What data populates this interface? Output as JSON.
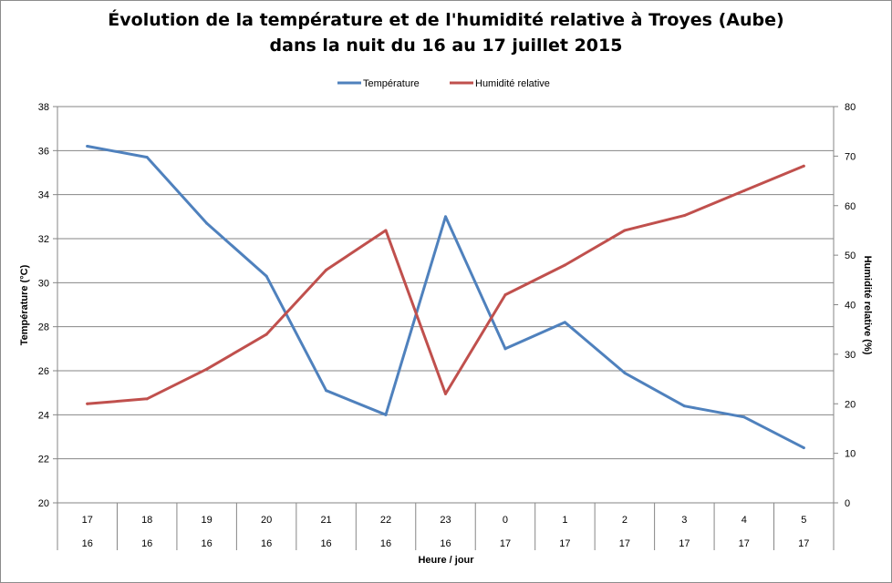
{
  "chart_data": {
    "type": "line",
    "title_line1": "Évolution de la température et de l'humidité relative à Troyes (Aube)",
    "title_line2": "dans la nuit du 16 au 17 juillet 2015",
    "xlabel": "Heure / jour",
    "ylabel_left": "Température (°C)",
    "ylabel_right": "Humidité relative (%)",
    "categories": [
      {
        "hour": "17",
        "day": "16"
      },
      {
        "hour": "18",
        "day": "16"
      },
      {
        "hour": "19",
        "day": "16"
      },
      {
        "hour": "20",
        "day": "16"
      },
      {
        "hour": "21",
        "day": "16"
      },
      {
        "hour": "22",
        "day": "16"
      },
      {
        "hour": "23",
        "day": "16"
      },
      {
        "hour": "0",
        "day": "17"
      },
      {
        "hour": "1",
        "day": "17"
      },
      {
        "hour": "2",
        "day": "17"
      },
      {
        "hour": "3",
        "day": "17"
      },
      {
        "hour": "4",
        "day": "17"
      },
      {
        "hour": "5",
        "day": "17"
      }
    ],
    "ylim_left": [
      20,
      38
    ],
    "yticks_left": [
      20,
      22,
      24,
      26,
      28,
      30,
      32,
      34,
      36,
      38
    ],
    "ylim_right": [
      0,
      80
    ],
    "yticks_right": [
      0,
      10,
      20,
      30,
      40,
      50,
      60,
      70,
      80
    ],
    "grid": true,
    "legend_position": "top",
    "series": [
      {
        "name": "Température",
        "axis": "left",
        "color": "#4f81bd",
        "values": [
          36.2,
          35.7,
          32.7,
          30.3,
          25.1,
          24.0,
          33.0,
          27.0,
          28.2,
          25.9,
          24.4,
          23.9,
          22.5
        ]
      },
      {
        "name": "Humidité relative",
        "axis": "right",
        "color": "#c0504d",
        "values": [
          20,
          21,
          27,
          34,
          47,
          55,
          22,
          42,
          48,
          55,
          58,
          63,
          68
        ]
      }
    ]
  }
}
